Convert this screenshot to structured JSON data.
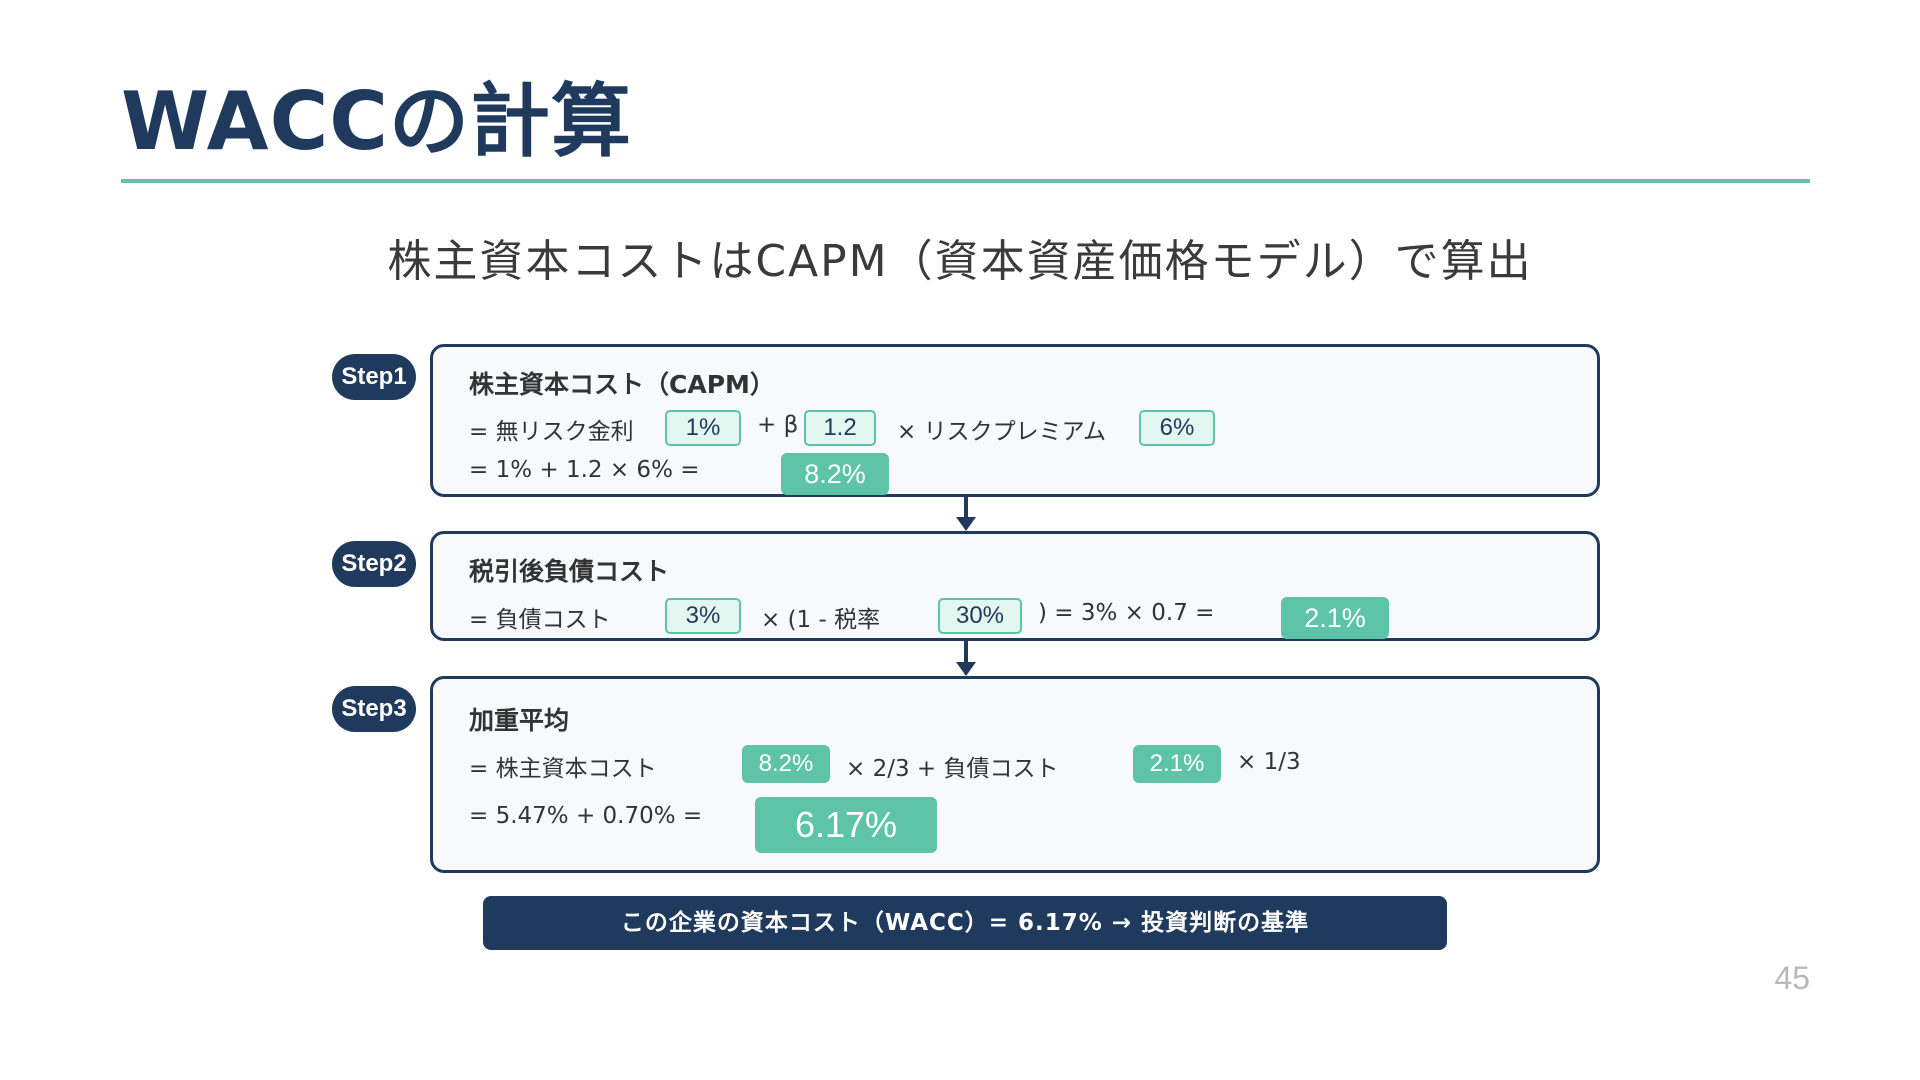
{
  "title": "WACCの計算",
  "subtitle": "株主資本コストはCAPM（資本資産価格モデル）で算出",
  "step1": {
    "badge": "Step1",
    "heading": "株主資本コスト（CAPM）",
    "line1_prefix": "= 無リスク金利",
    "risk_free": "1%",
    "plus_beta": "+ β",
    "beta": "1.2",
    "times_premium": "× リスクプレミアム",
    "premium": "6%",
    "line2": "= 1% + 1.2 × 6% =",
    "result": "8.2%"
  },
  "step2": {
    "badge": "Step2",
    "heading": "税引後負債コスト",
    "line1_prefix": "= 負債コスト",
    "debt_cost": "3%",
    "times_tax": "× (1 - 税率",
    "tax_rate": "30%",
    "tail": ") = 3% × 0.7 =",
    "result": "2.1%"
  },
  "step3": {
    "badge": "Step3",
    "heading": "加重平均",
    "line1_prefix": "= 株主資本コスト",
    "equity_cost": "8.2%",
    "mid": "× 2/3 + 負債コスト",
    "debt_cost": "2.1%",
    "tail": "× 1/3",
    "line2": "= 5.47% + 0.70% =",
    "result": "6.17%"
  },
  "summary": "この企業の資本コスト（WACC）= 6.17% → 投資判断の基準",
  "page_number": "45",
  "colors": {
    "navy": "#1f3a5c",
    "teal": "#5ec4a8",
    "teal_light": "#e3f6f0"
  }
}
